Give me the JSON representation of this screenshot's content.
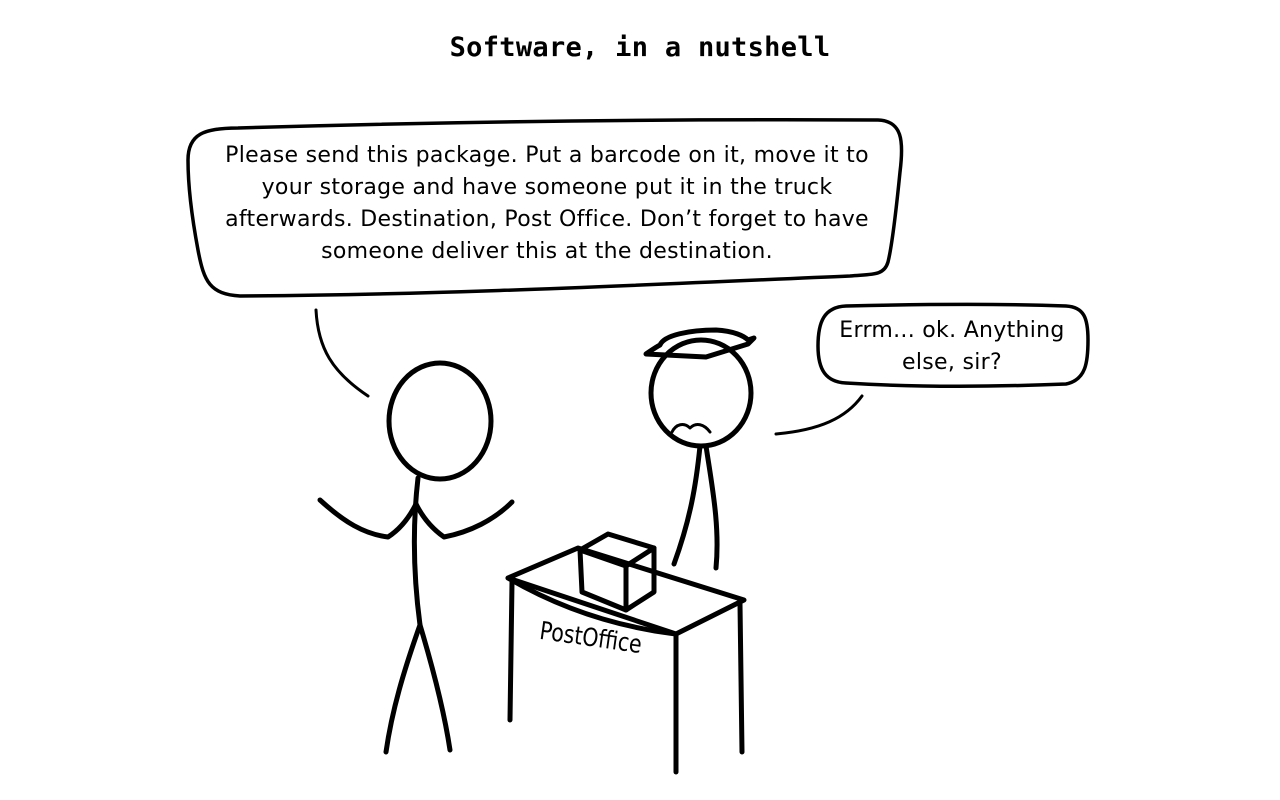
{
  "title": "Software, in a nutshell",
  "customer_speech": "Please send this package. Put a barcode on it, move it to your storage and have someone put it in the truck afterwards. Destination, Post Office. Don’t forget to have someone deliver this at the destination.",
  "clerk_speech": "Errm... ok. Anything else, sir?",
  "desk_label": "PostOffice"
}
